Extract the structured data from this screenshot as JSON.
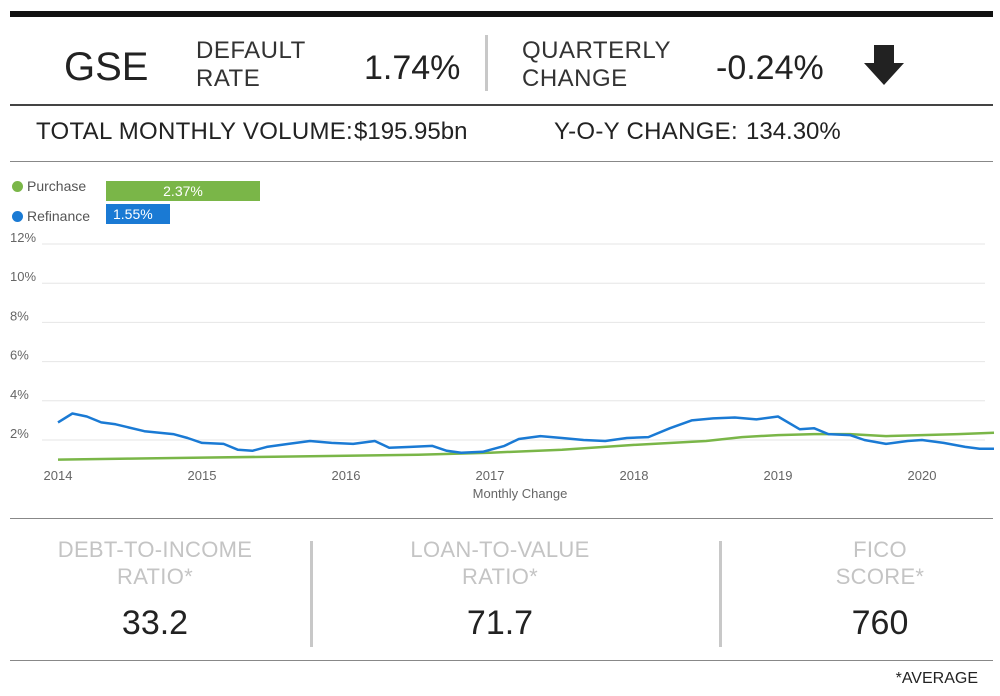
{
  "header": {
    "agency": "GSE",
    "default_rate_label_1": "DEFAULT",
    "default_rate_label_2": "RATE",
    "default_rate_value": "1.74%",
    "quarterly_label_1": "QUARTERLY",
    "quarterly_label_2": "CHANGE",
    "quarterly_value": "-0.24%",
    "trend_icon": "down-arrow-icon"
  },
  "volume": {
    "total_label": "TOTAL MONTHLY VOLUME:",
    "total_value": "$195.95bn",
    "yoy_label": "Y-O-Y CHANGE:",
    "yoy_value": "134.30%"
  },
  "legend": [
    {
      "name": "Purchase",
      "value_label": "2.37%",
      "color": "#7ab648"
    },
    {
      "name": "Refinance",
      "value_label": "1.55%",
      "color": "#1a7ad4"
    }
  ],
  "chart_data": {
    "type": "line",
    "xlabel": "Monthly Change",
    "ylabel": "",
    "x_ticks": [
      "2014",
      "2015",
      "2016",
      "2017",
      "2018",
      "2019",
      "2020"
    ],
    "y_ticks": [
      "2%",
      "4%",
      "6%",
      "8%",
      "10%",
      "12%"
    ],
    "ylim": [
      0.9,
      12
    ],
    "xlim": [
      2014.0,
      2020.6
    ],
    "grid": true,
    "legend_position": "top-left",
    "series": [
      {
        "name": "Purchase",
        "color": "#7ab648",
        "x": [
          2014.0,
          2014.5,
          2015.0,
          2015.5,
          2016.0,
          2016.5,
          2017.0,
          2017.5,
          2018.0,
          2018.5,
          2018.75,
          2019.0,
          2019.25,
          2019.5,
          2019.75,
          2020.0,
          2020.25,
          2020.5
        ],
        "values": [
          1.0,
          1.05,
          1.1,
          1.15,
          1.2,
          1.25,
          1.35,
          1.5,
          1.75,
          1.95,
          2.15,
          2.25,
          2.3,
          2.3,
          2.2,
          2.25,
          2.3,
          2.37
        ]
      },
      {
        "name": "Refinance",
        "color": "#1a7ad4",
        "x": [
          2014.0,
          2014.1,
          2014.2,
          2014.3,
          2014.4,
          2014.6,
          2014.8,
          2014.9,
          2015.0,
          2015.15,
          2015.25,
          2015.35,
          2015.45,
          2015.6,
          2015.75,
          2015.9,
          2016.05,
          2016.2,
          2016.3,
          2016.45,
          2016.6,
          2016.7,
          2016.8,
          2016.95,
          2017.1,
          2017.2,
          2017.35,
          2017.5,
          2017.65,
          2017.8,
          2017.95,
          2018.1,
          2018.25,
          2018.4,
          2018.55,
          2018.7,
          2018.85,
          2019.0,
          2019.15,
          2019.25,
          2019.35,
          2019.5,
          2019.6,
          2019.75,
          2019.9,
          2020.0,
          2020.15,
          2020.3,
          2020.4,
          2020.5
        ],
        "values": [
          2.9,
          3.35,
          3.2,
          2.9,
          2.8,
          2.45,
          2.3,
          2.1,
          1.85,
          1.8,
          1.5,
          1.45,
          1.65,
          1.8,
          1.95,
          1.85,
          1.8,
          1.95,
          1.6,
          1.65,
          1.7,
          1.45,
          1.35,
          1.4,
          1.7,
          2.05,
          2.2,
          2.1,
          2.0,
          1.95,
          2.1,
          2.15,
          2.6,
          3.0,
          3.1,
          3.15,
          3.05,
          3.2,
          2.55,
          2.6,
          2.3,
          2.25,
          2.0,
          1.8,
          1.95,
          2.0,
          1.85,
          1.65,
          1.55,
          1.55
        ]
      }
    ]
  },
  "metrics": [
    {
      "label_1": "DEBT-TO-INCOME",
      "label_2": "RATIO*",
      "value": "33.2"
    },
    {
      "label_1": "LOAN-TO-VALUE",
      "label_2": "RATIO*",
      "value": "71.7"
    },
    {
      "label_1": "FICO",
      "label_2": "SCORE*",
      "value": "760"
    }
  ],
  "footnote": "*AVERAGE"
}
